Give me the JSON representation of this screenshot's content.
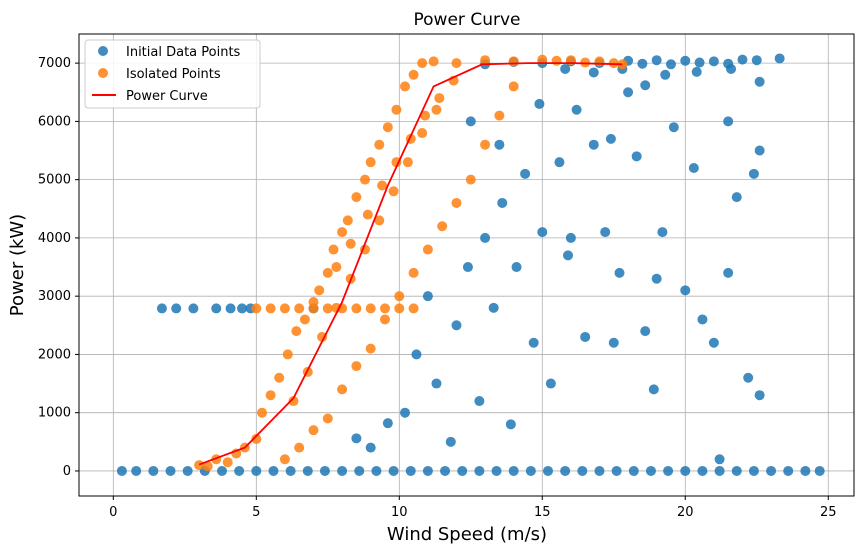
{
  "chart_data": {
    "type": "scatter",
    "title": "Power Curve",
    "xlabel": "Wind Speed (m/s)",
    "ylabel": "Power (kW)",
    "xlim": [
      -1.2,
      25.9
    ],
    "ylim": [
      -430,
      7500
    ],
    "xticks": [
      0,
      5,
      10,
      15,
      20,
      25
    ],
    "yticks": [
      0,
      1000,
      2000,
      3000,
      4000,
      5000,
      6000,
      7000
    ],
    "grid": true,
    "legend_position": "top-left",
    "colors": {
      "initial": "#1f77b4",
      "isolated": "#ff7f0e",
      "curve": "#ff0000"
    },
    "series": [
      {
        "name": "Initial Data Points",
        "kind": "scatter",
        "points": [
          [
            0.3,
            0
          ],
          [
            0.8,
            0
          ],
          [
            1.4,
            0
          ],
          [
            2.0,
            0
          ],
          [
            2.6,
            0
          ],
          [
            3.2,
            0
          ],
          [
            3.8,
            0
          ],
          [
            4.4,
            0
          ],
          [
            5.0,
            0
          ],
          [
            5.6,
            0
          ],
          [
            6.2,
            0
          ],
          [
            6.8,
            0
          ],
          [
            7.4,
            0
          ],
          [
            8.0,
            0
          ],
          [
            8.6,
            0
          ],
          [
            9.2,
            0
          ],
          [
            9.8,
            0
          ],
          [
            10.4,
            0
          ],
          [
            11.0,
            0
          ],
          [
            11.6,
            0
          ],
          [
            12.2,
            0
          ],
          [
            12.8,
            0
          ],
          [
            13.4,
            0
          ],
          [
            14.0,
            0
          ],
          [
            14.6,
            0
          ],
          [
            15.2,
            0
          ],
          [
            15.8,
            0
          ],
          [
            16.4,
            0
          ],
          [
            17.0,
            0
          ],
          [
            17.6,
            0
          ],
          [
            18.2,
            0
          ],
          [
            18.8,
            0
          ],
          [
            19.4,
            0
          ],
          [
            20.0,
            0
          ],
          [
            20.6,
            0
          ],
          [
            21.2,
            0
          ],
          [
            21.8,
            0
          ],
          [
            22.4,
            0
          ],
          [
            23.0,
            0
          ],
          [
            23.6,
            0
          ],
          [
            24.2,
            0
          ],
          [
            24.7,
            0
          ],
          [
            1.7,
            2790
          ],
          [
            2.2,
            2790
          ],
          [
            2.8,
            2790
          ],
          [
            3.6,
            2790
          ],
          [
            4.1,
            2790
          ],
          [
            4.5,
            2790
          ],
          [
            4.8,
            2790
          ],
          [
            7.0,
            2790
          ],
          [
            8.5,
            560
          ],
          [
            9.0,
            400
          ],
          [
            9.6,
            820
          ],
          [
            10.2,
            1000
          ],
          [
            10.6,
            2000
          ],
          [
            11.0,
            3000
          ],
          [
            11.3,
            1500
          ],
          [
            11.8,
            500
          ],
          [
            12.0,
            2500
          ],
          [
            12.4,
            3500
          ],
          [
            12.8,
            1200
          ],
          [
            13.0,
            4000
          ],
          [
            13.3,
            2800
          ],
          [
            13.6,
            4600
          ],
          [
            13.9,
            800
          ],
          [
            14.1,
            3500
          ],
          [
            14.4,
            5100
          ],
          [
            14.7,
            2200
          ],
          [
            15.0,
            4100
          ],
          [
            15.3,
            1500
          ],
          [
            15.6,
            5300
          ],
          [
            15.9,
            3700
          ],
          [
            16.2,
            6200
          ],
          [
            16.5,
            2300
          ],
          [
            16.8,
            5600
          ],
          [
            17.2,
            4100
          ],
          [
            17.5,
            2200
          ],
          [
            17.7,
            3400
          ],
          [
            18.0,
            6500
          ],
          [
            18.3,
            5400
          ],
          [
            18.6,
            2400
          ],
          [
            18.9,
            1400
          ],
          [
            19.2,
            4100
          ],
          [
            19.6,
            5900
          ],
          [
            20.0,
            3100
          ],
          [
            20.3,
            5200
          ],
          [
            20.6,
            2600
          ],
          [
            21.0,
            2200
          ],
          [
            21.2,
            200
          ],
          [
            21.5,
            3400
          ],
          [
            21.8,
            4700
          ],
          [
            22.2,
            1600
          ],
          [
            22.4,
            5100
          ],
          [
            22.6,
            1300
          ],
          [
            22.6,
            5500
          ],
          [
            21.5,
            6000
          ],
          [
            16.0,
            4000
          ],
          [
            13.5,
            5600
          ],
          [
            14.9,
            6300
          ],
          [
            17.4,
            5700
          ],
          [
            12.5,
            6000
          ],
          [
            19.0,
            3300
          ],
          [
            13.0,
            6980
          ],
          [
            14.0,
            7020
          ],
          [
            15.0,
            7000
          ],
          [
            16.0,
            7030
          ],
          [
            17.0,
            7000
          ],
          [
            18.0,
            7040
          ],
          [
            18.5,
            6990
          ],
          [
            19.0,
            7050
          ],
          [
            19.5,
            6980
          ],
          [
            20.0,
            7040
          ],
          [
            20.5,
            7010
          ],
          [
            21.0,
            7030
          ],
          [
            21.5,
            6990
          ],
          [
            22.0,
            7060
          ],
          [
            22.5,
            7050
          ],
          [
            23.3,
            7080
          ],
          [
            22.6,
            6680
          ],
          [
            21.6,
            6900
          ],
          [
            20.4,
            6850
          ],
          [
            19.3,
            6800
          ],
          [
            18.6,
            6620
          ],
          [
            17.8,
            6900
          ],
          [
            16.8,
            6840
          ],
          [
            15.8,
            6900
          ]
        ]
      },
      {
        "name": "Isolated Points",
        "kind": "scatter",
        "points": [
          [
            3.0,
            100
          ],
          [
            3.3,
            80
          ],
          [
            3.6,
            200
          ],
          [
            4.0,
            150
          ],
          [
            4.3,
            300
          ],
          [
            4.6,
            400
          ],
          [
            5.0,
            550
          ],
          [
            5.2,
            1000
          ],
          [
            5.5,
            1300
          ],
          [
            5.8,
            1600
          ],
          [
            6.1,
            2000
          ],
          [
            6.4,
            2400
          ],
          [
            6.7,
            2600
          ],
          [
            7.0,
            2900
          ],
          [
            7.2,
            3100
          ],
          [
            7.5,
            3400
          ],
          [
            7.7,
            3800
          ],
          [
            8.0,
            4100
          ],
          [
            8.2,
            4300
          ],
          [
            8.5,
            4700
          ],
          [
            8.8,
            5000
          ],
          [
            9.0,
            5300
          ],
          [
            9.3,
            5600
          ],
          [
            9.6,
            5900
          ],
          [
            9.9,
            6200
          ],
          [
            10.2,
            6600
          ],
          [
            10.5,
            6800
          ],
          [
            10.8,
            7000
          ],
          [
            11.2,
            7030
          ],
          [
            5.0,
            2790
          ],
          [
            5.5,
            2790
          ],
          [
            6.0,
            2790
          ],
          [
            6.5,
            2790
          ],
          [
            7.0,
            2790
          ],
          [
            7.5,
            2790
          ],
          [
            8.0,
            2790
          ],
          [
            8.5,
            2790
          ],
          [
            9.0,
            2790
          ],
          [
            9.5,
            2790
          ],
          [
            10.0,
            2790
          ],
          [
            10.5,
            2790
          ],
          [
            6.0,
            200
          ],
          [
            6.5,
            400
          ],
          [
            7.0,
            700
          ],
          [
            7.5,
            900
          ],
          [
            8.0,
            1400
          ],
          [
            8.5,
            1800
          ],
          [
            9.0,
            2100
          ],
          [
            9.5,
            2600
          ],
          [
            10.0,
            3000
          ],
          [
            10.5,
            3400
          ],
          [
            11.0,
            3800
          ],
          [
            11.5,
            4200
          ],
          [
            12.0,
            4600
          ],
          [
            12.5,
            5000
          ],
          [
            13.0,
            5600
          ],
          [
            13.5,
            6100
          ],
          [
            14.0,
            6600
          ],
          [
            7.8,
            3500
          ],
          [
            8.3,
            3900
          ],
          [
            8.9,
            4400
          ],
          [
            9.4,
            4900
          ],
          [
            9.9,
            5300
          ],
          [
            10.4,
            5700
          ],
          [
            10.9,
            6100
          ],
          [
            11.4,
            6400
          ],
          [
            11.9,
            6700
          ],
          [
            12.0,
            7000
          ],
          [
            13.0,
            7050
          ],
          [
            14.0,
            7030
          ],
          [
            15.0,
            7060
          ],
          [
            15.5,
            7040
          ],
          [
            16.0,
            7050
          ],
          [
            16.5,
            7010
          ],
          [
            17.0,
            7030
          ],
          [
            17.5,
            7000
          ],
          [
            17.8,
            6980
          ],
          [
            6.3,
            1200
          ],
          [
            6.8,
            1700
          ],
          [
            7.3,
            2300
          ],
          [
            7.8,
            2800
          ],
          [
            8.3,
            3300
          ],
          [
            8.8,
            3800
          ],
          [
            9.3,
            4300
          ],
          [
            9.8,
            4800
          ],
          [
            10.3,
            5300
          ],
          [
            10.8,
            5800
          ],
          [
            11.3,
            6200
          ]
        ]
      },
      {
        "name": "Power Curve",
        "kind": "line",
        "points": [
          [
            3.0,
            110
          ],
          [
            4.6,
            400
          ],
          [
            6.3,
            1250
          ],
          [
            8.0,
            2900
          ],
          [
            9.6,
            4900
          ],
          [
            11.2,
            6600
          ],
          [
            12.9,
            6980
          ],
          [
            14.5,
            7000
          ],
          [
            16.1,
            7000
          ],
          [
            17.8,
            6980
          ]
        ]
      }
    ]
  }
}
